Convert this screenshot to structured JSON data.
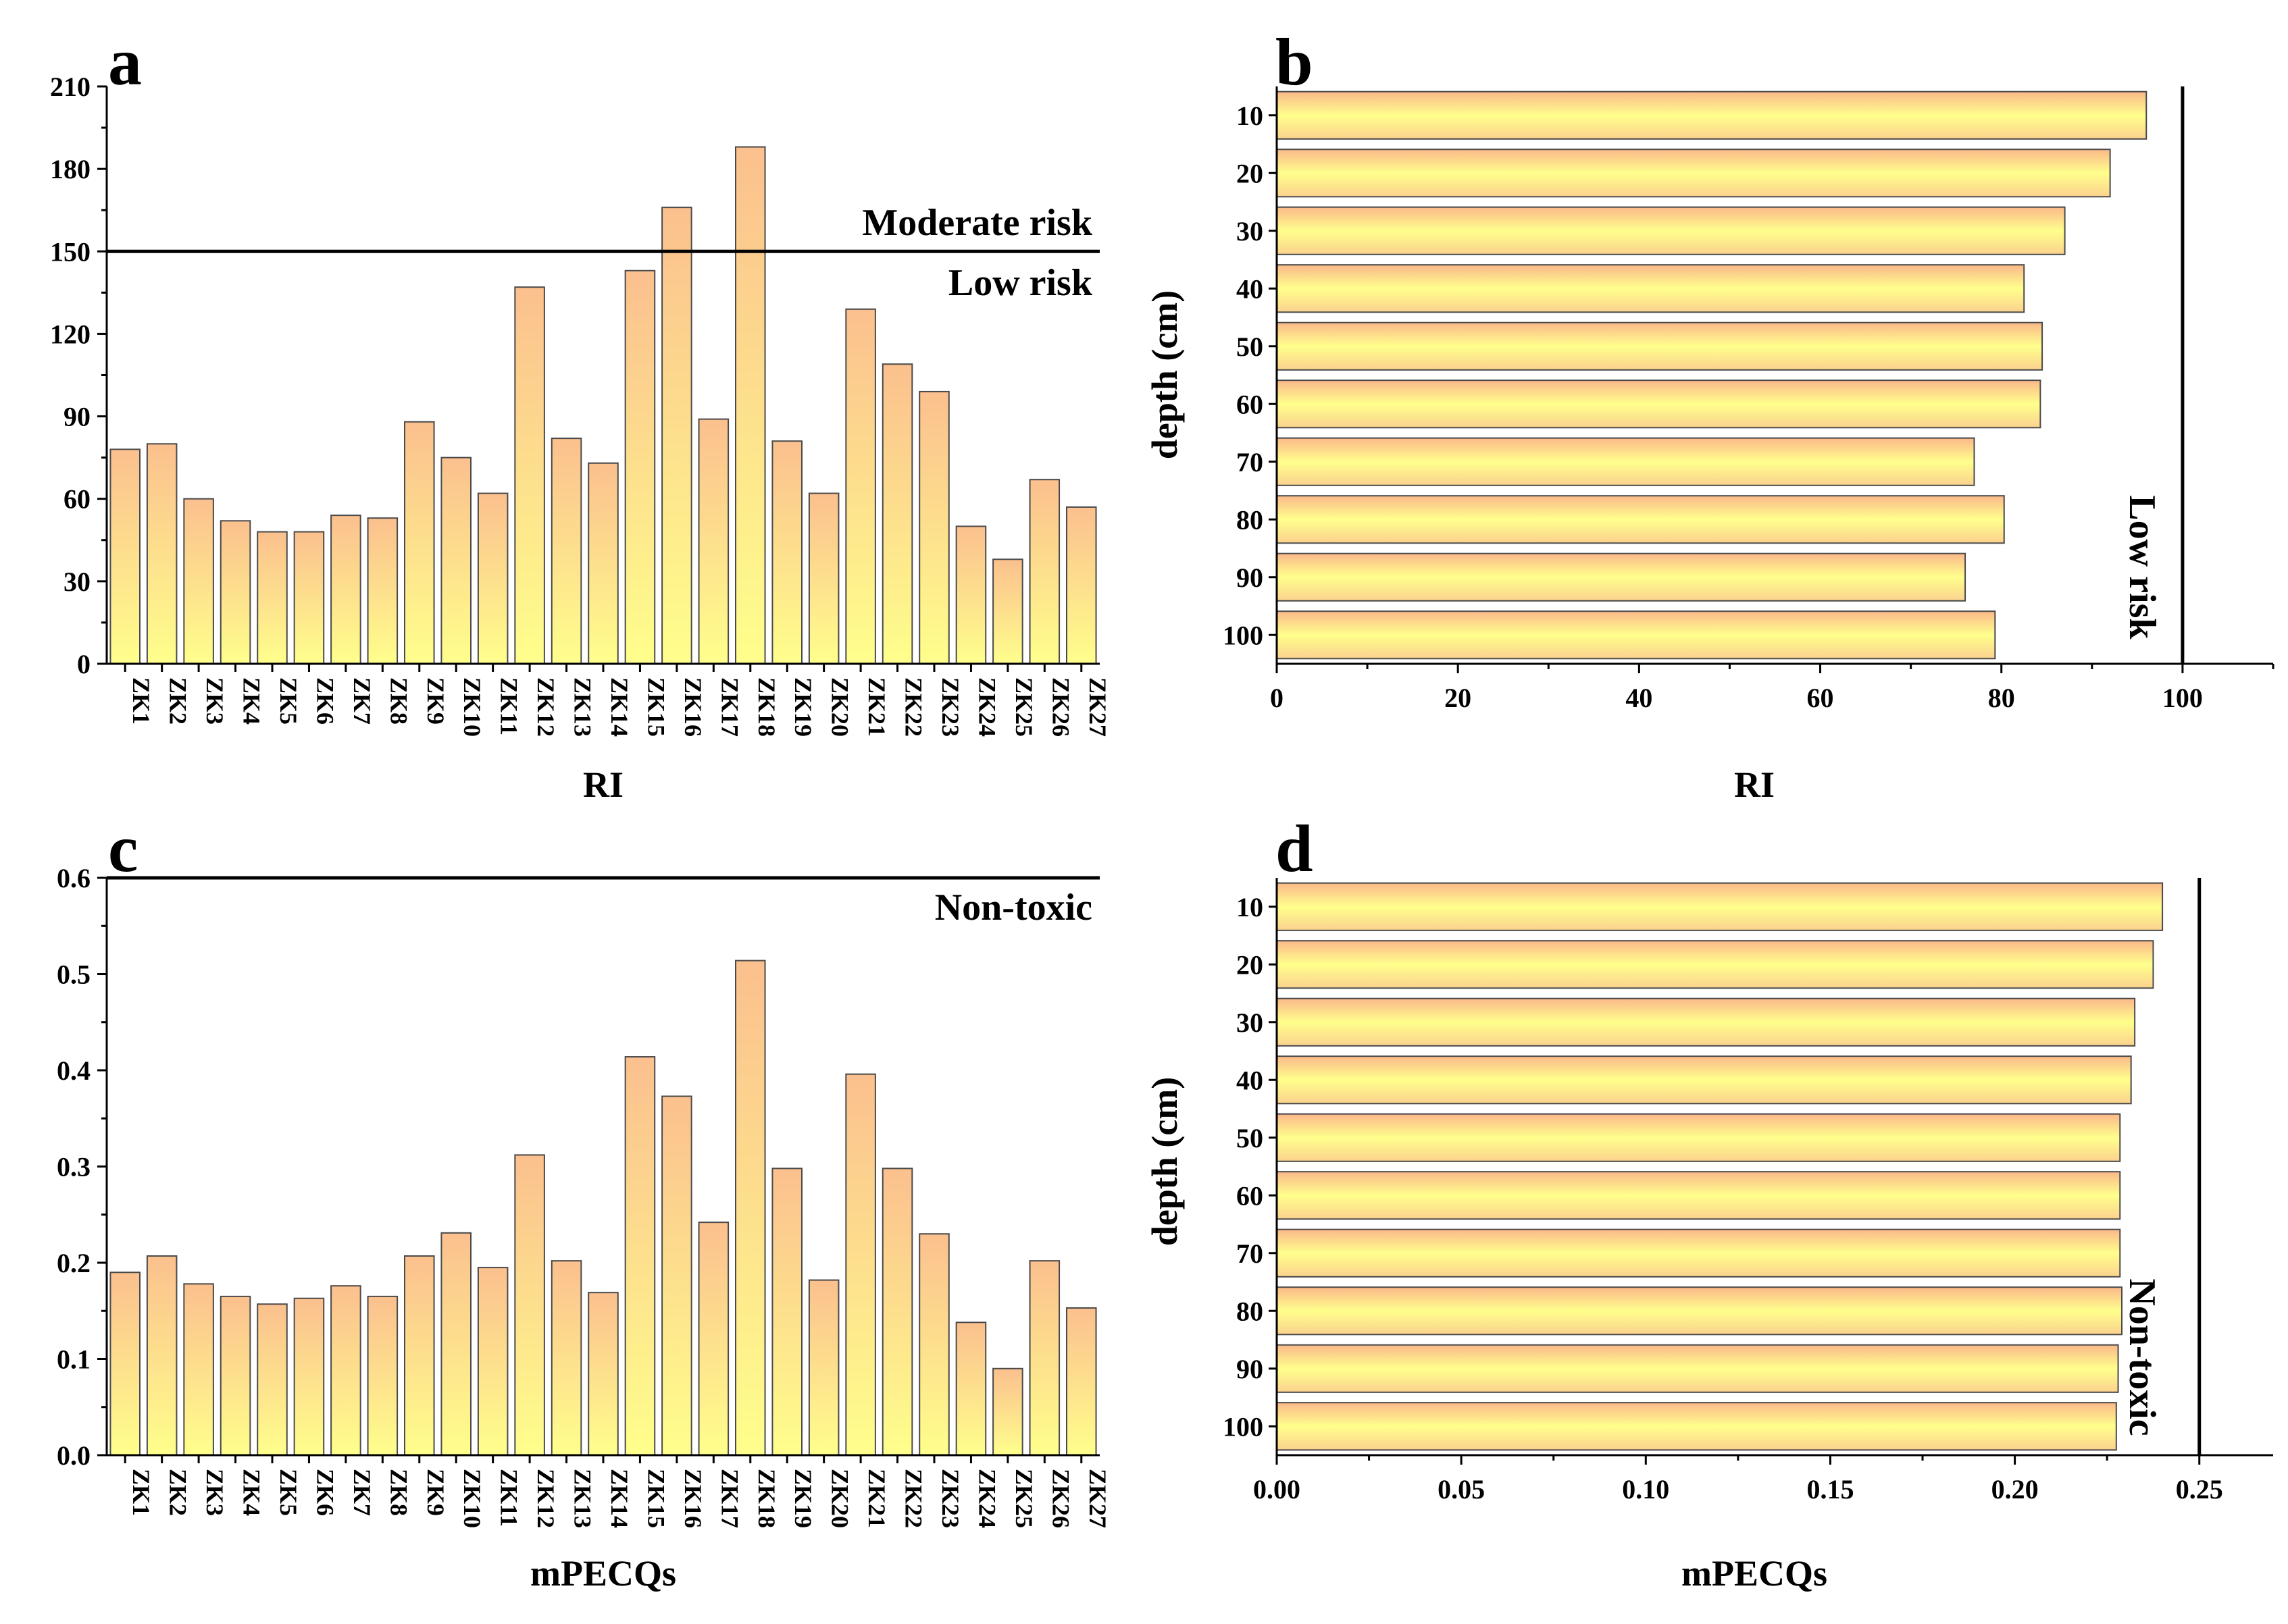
{
  "chart_data": [
    {
      "panel": "a",
      "type": "bar",
      "orientation": "vertical",
      "xlabel": "RI",
      "ylabel": "",
      "ylim": [
        0,
        210
      ],
      "yticks": [
        "0",
        "30",
        "60",
        "90",
        "120",
        "150",
        "180",
        "210"
      ],
      "categories": [
        "ZK1",
        "ZK2",
        "ZK3",
        "ZK4",
        "ZK5",
        "ZK6",
        "ZK7",
        "ZK8",
        "ZK9",
        "ZK10",
        "ZK11",
        "ZK12",
        "ZK13",
        "ZK14",
        "ZK15",
        "ZK16",
        "ZK17",
        "ZK18",
        "ZK19",
        "ZK20",
        "ZK21",
        "ZK22",
        "ZK23",
        "ZK24",
        "ZK25",
        "ZK26",
        "ZK27"
      ],
      "values": [
        78,
        80,
        60,
        52,
        48,
        48,
        54,
        53,
        88,
        75,
        62,
        137,
        82,
        73,
        143,
        166,
        89,
        188,
        81,
        62,
        129,
        109,
        99,
        50,
        38,
        67,
        57
      ],
      "threshold": 150,
      "annotations": [
        "Moderate risk",
        "Low risk"
      ]
    },
    {
      "panel": "b",
      "type": "bar",
      "orientation": "horizontal",
      "xlabel": "RI",
      "ylabel": "depth (cm)",
      "xlim": [
        0,
        110
      ],
      "xticks": [
        "0",
        "20",
        "40",
        "60",
        "80",
        "100"
      ],
      "categories": [
        "10",
        "20",
        "30",
        "40",
        "50",
        "60",
        "70",
        "80",
        "90",
        "100"
      ],
      "values": [
        96,
        92,
        87,
        82.5,
        84.5,
        84.3,
        77,
        80.3,
        76,
        79.3
      ],
      "threshold": 100,
      "annotations": [
        "Low risk"
      ]
    },
    {
      "panel": "c",
      "type": "bar",
      "orientation": "vertical",
      "xlabel": "mPECQs",
      "ylabel": "",
      "ylim": [
        0,
        0.6
      ],
      "yticks": [
        "0.0",
        "0.1",
        "0.2",
        "0.3",
        "0.4",
        "0.5",
        "0.6"
      ],
      "categories": [
        "ZK1",
        "ZK2",
        "ZK3",
        "ZK4",
        "ZK5",
        "ZK6",
        "ZK7",
        "ZK8",
        "ZK9",
        "ZK10",
        "ZK11",
        "ZK12",
        "ZK13",
        "ZK14",
        "ZK15",
        "ZK16",
        "ZK17",
        "ZK18",
        "ZK19",
        "ZK20",
        "ZK21",
        "ZK22",
        "ZK23",
        "ZK24",
        "ZK25",
        "ZK26",
        "ZK27"
      ],
      "values": [
        0.19,
        0.207,
        0.178,
        0.165,
        0.157,
        0.163,
        0.176,
        0.165,
        0.207,
        0.231,
        0.195,
        0.312,
        0.202,
        0.169,
        0.414,
        0.373,
        0.242,
        0.514,
        0.298,
        0.182,
        0.396,
        0.298,
        0.23,
        0.138,
        0.09,
        0.202,
        0.153
      ],
      "threshold": 0.6,
      "annotations": [
        "Non-toxic"
      ]
    },
    {
      "panel": "d",
      "type": "bar",
      "orientation": "horizontal",
      "xlabel": "mPECQs",
      "ylabel": "depth (cm)",
      "xlim": [
        0,
        0.27
      ],
      "xticks": [
        "0.00",
        "0.05",
        "0.10",
        "0.15",
        "0.20",
        "0.25"
      ],
      "categories": [
        "10",
        "20",
        "30",
        "40",
        "50",
        "60",
        "70",
        "80",
        "90",
        "100"
      ],
      "values": [
        0.24,
        0.2375,
        0.2325,
        0.2315,
        0.2285,
        0.2285,
        0.2285,
        0.229,
        0.228,
        0.2275
      ],
      "threshold": 0.25,
      "annotations": [
        "Non-toxic"
      ]
    }
  ],
  "colors": {
    "bar_top": "#FBC08E",
    "bar_bottom": "#FFFF8C",
    "bar_outline": "#4a4a4a",
    "axis": "#000000",
    "threshold_line": "#000000"
  }
}
